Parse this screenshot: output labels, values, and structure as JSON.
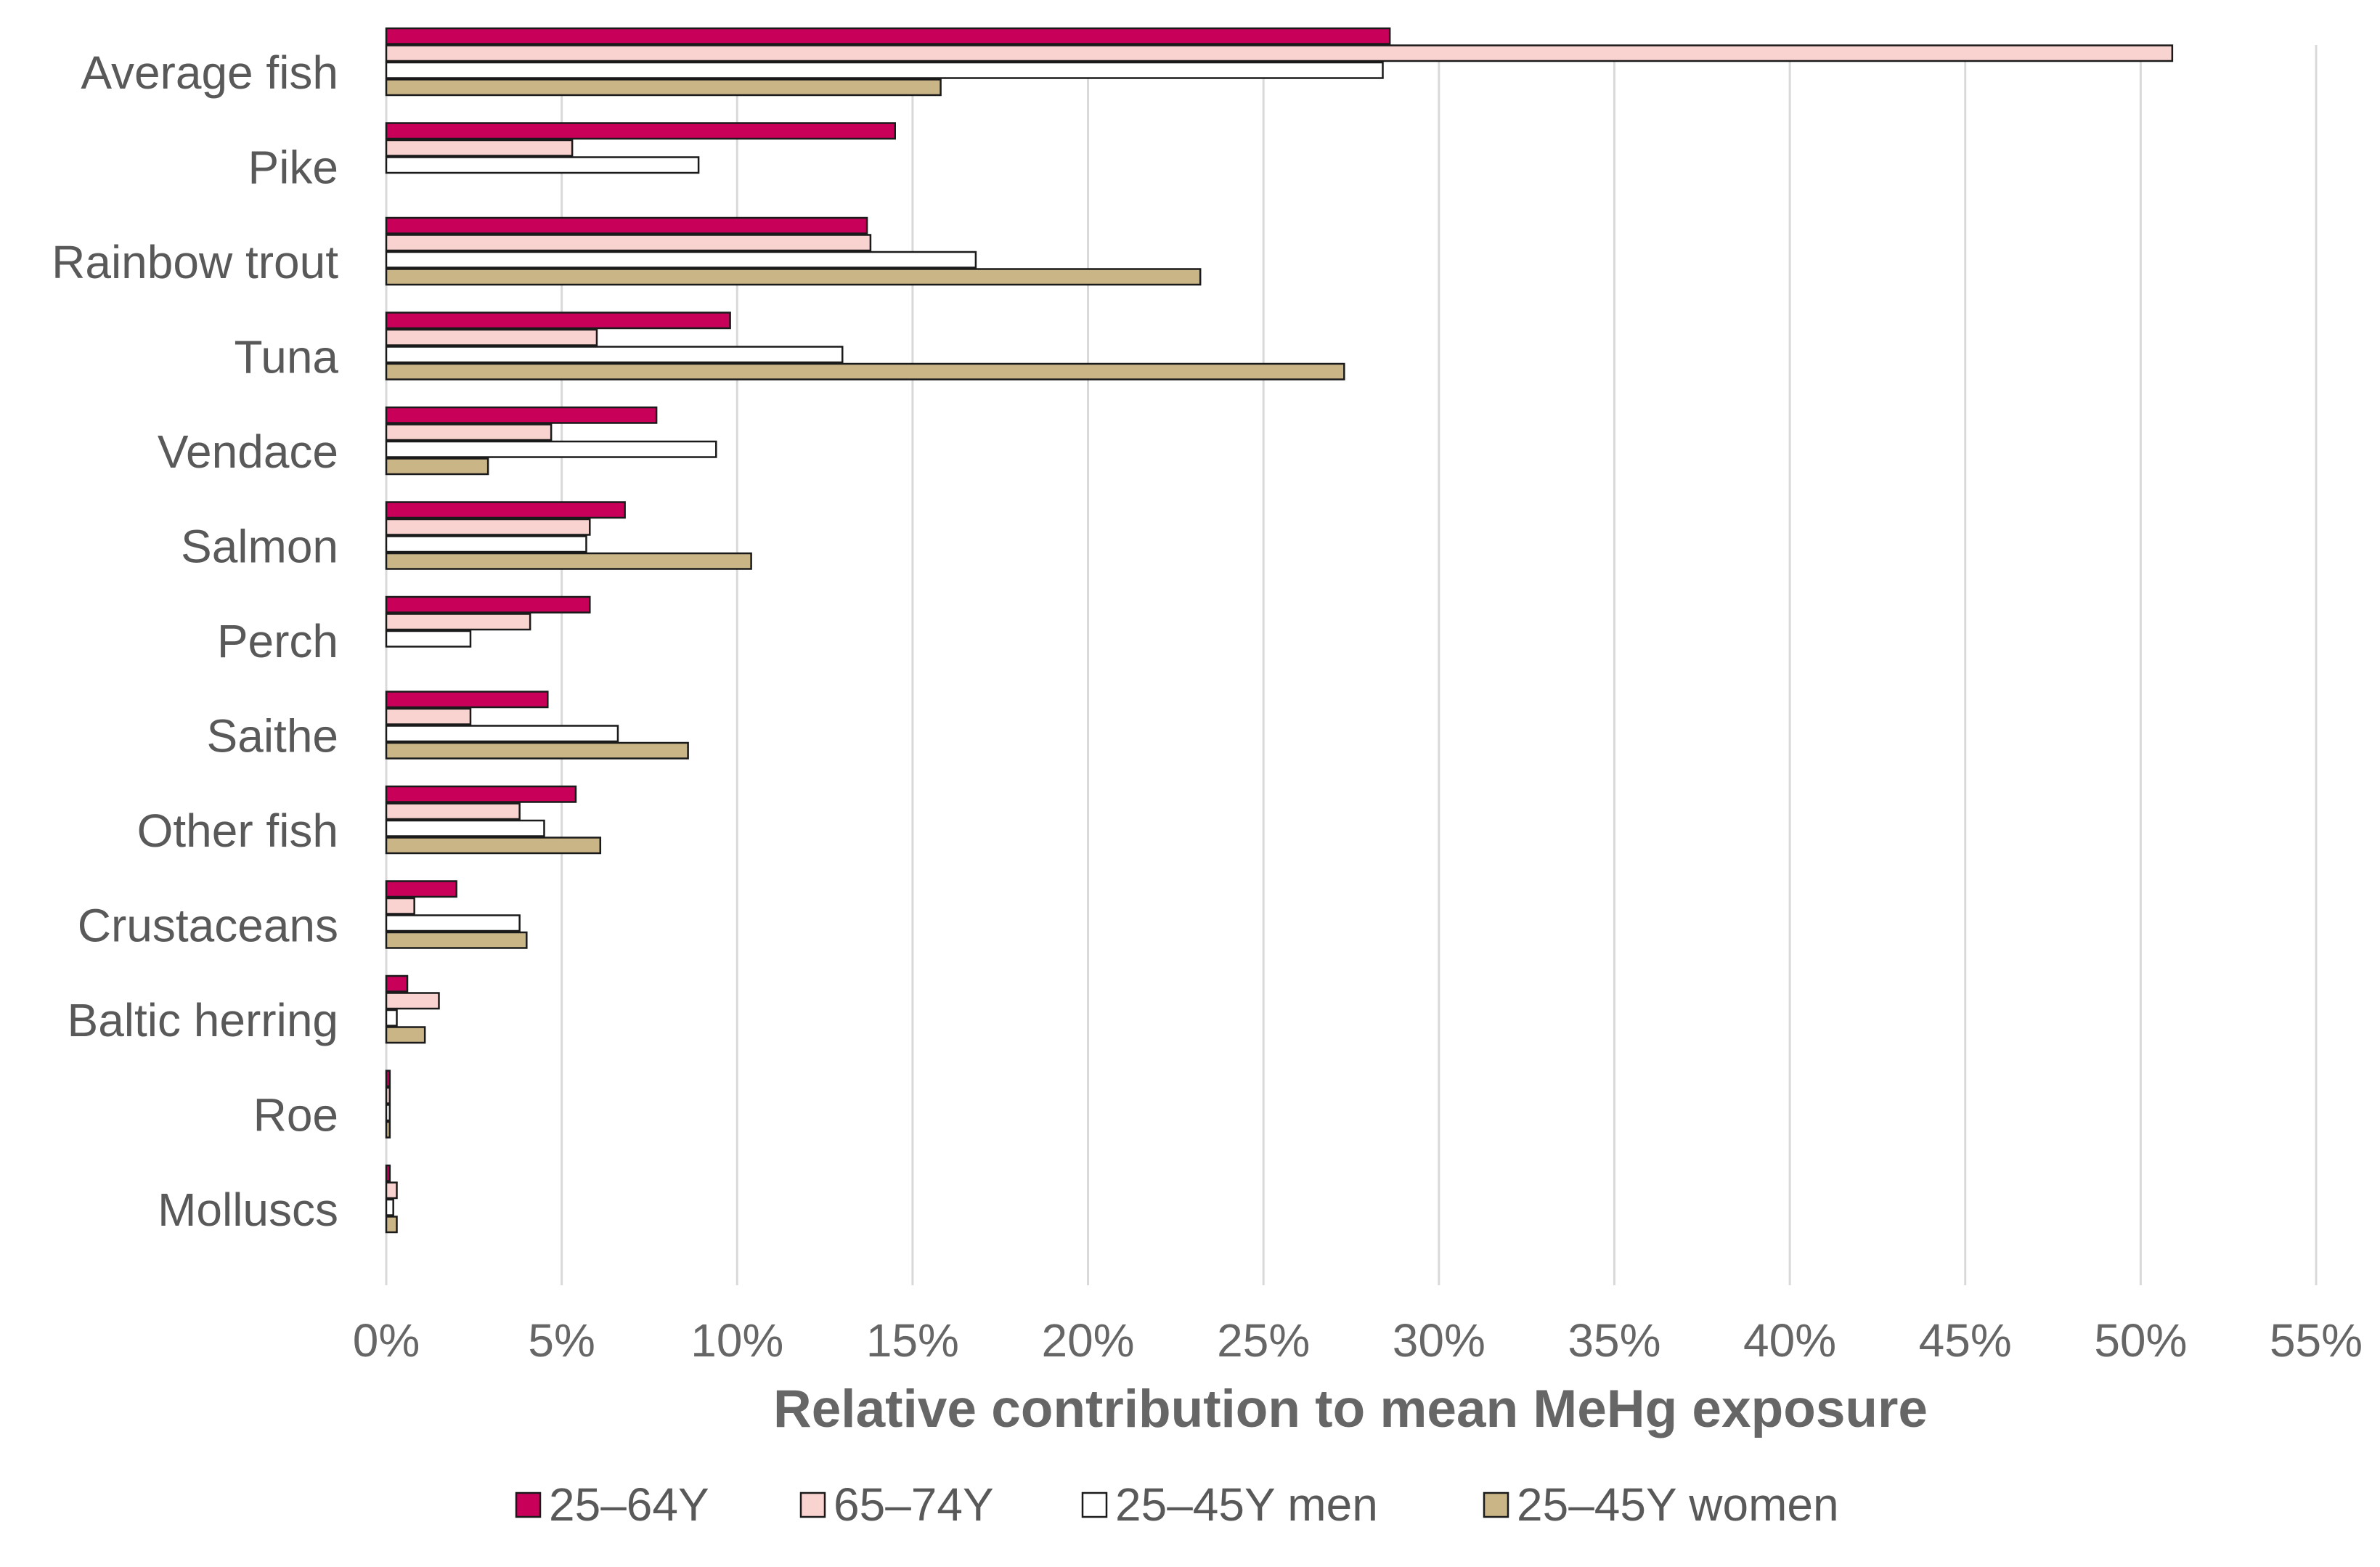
{
  "chart_data": {
    "type": "bar",
    "orientation": "horizontal",
    "title": "",
    "xlabel": "Relative contribution to mean MeHg exposure",
    "ylabel": "",
    "xlim": [
      0,
      55
    ],
    "x_tick_values": [
      0,
      5,
      10,
      15,
      20,
      25,
      30,
      35,
      40,
      45,
      50,
      55
    ],
    "x_tick_labels": [
      "0%",
      "5%",
      "10%",
      "15%",
      "20%",
      "25%",
      "30%",
      "35%",
      "40%",
      "45%",
      "50%",
      "55%"
    ],
    "grid": "vertical",
    "legend_position": "bottom",
    "categories": [
      "Average fish",
      "Pike",
      "Rainbow trout",
      "Tuna",
      "Vendace",
      "Salmon",
      "Perch",
      "Saithe",
      "Other fish",
      "Crustaceans",
      "Baltic herring",
      "Roe",
      "Molluscs"
    ],
    "series": [
      {
        "name": "25–64Y",
        "color": "#c8005a",
        "values": [
          28.6,
          14.5,
          13.7,
          9.8,
          7.7,
          6.8,
          5.8,
          4.6,
          5.4,
          2.0,
          0.6,
          0.1,
          0.1
        ]
      },
      {
        "name": "65–74Y",
        "color": "#f9d3d0",
        "values": [
          50.9,
          5.3,
          13.8,
          6.0,
          4.7,
          5.8,
          4.1,
          2.4,
          3.8,
          0.8,
          1.5,
          0.1,
          0.3
        ]
      },
      {
        "name": "25–45Y men",
        "color": "#ffffff",
        "values": [
          28.4,
          8.9,
          16.8,
          13.0,
          9.4,
          5.7,
          2.4,
          6.6,
          4.5,
          3.8,
          0.3,
          0.1,
          0.2
        ]
      },
      {
        "name": "25–45Y women",
        "color": "#c9b586",
        "values": [
          15.8,
          0,
          23.2,
          27.3,
          2.9,
          10.4,
          0,
          8.6,
          6.1,
          4.0,
          1.1,
          0.1,
          0.3
        ]
      }
    ]
  }
}
